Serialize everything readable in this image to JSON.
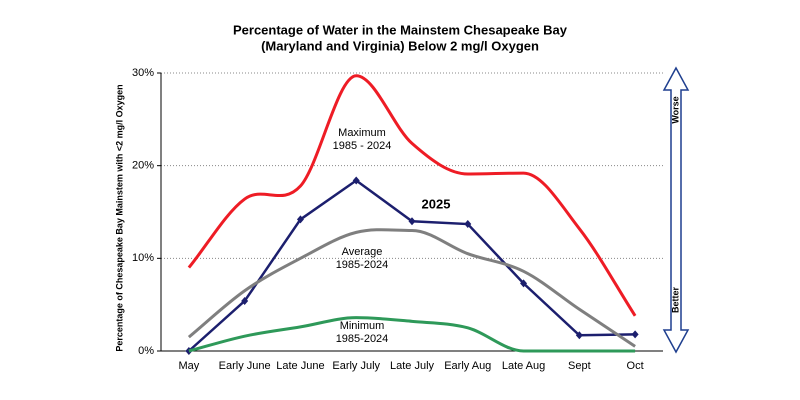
{
  "chart_data": {
    "type": "line",
    "title": [
      "Percentage of Water in the Mainstem Chesapeake Bay",
      "(Maryland and Virginia) Below 2 mg/l Oxygen"
    ],
    "y_label": "Percentage of Chesapeake Bay Mainstem with <2 mg/l Oxygen",
    "categories": [
      "May",
      "Early June",
      "Late June",
      "Early July",
      "Late July",
      "Early Aug",
      "Late Aug",
      "Sept",
      "Oct"
    ],
    "ylim": [
      0,
      30
    ],
    "yticks": [
      {
        "value": 0,
        "label": "0%"
      },
      {
        "value": 10,
        "label": "10%"
      },
      {
        "value": 20,
        "label": "20%"
      },
      {
        "value": 30,
        "label": "30%"
      }
    ],
    "grid": true,
    "series": [
      {
        "name": "Maximum",
        "period": "1985 - 2024",
        "color": "#ee1c25",
        "smooth": true,
        "values": [
          9.0,
          16.4,
          17.8,
          29.7,
          22.4,
          19.1,
          19.2,
          13.2,
          3.8
        ]
      },
      {
        "name": "2025",
        "color": "#1c1f6e",
        "smooth": false,
        "markers": true,
        "values": [
          0,
          5.4,
          14.2,
          18.4,
          14.0,
          13.7,
          7.3,
          1.7,
          1.8
        ]
      },
      {
        "name": "Average",
        "period": "1985-2024",
        "color": "#7f7f7f",
        "smooth": true,
        "values": [
          1.5,
          6.5,
          10.0,
          12.8,
          13.0,
          10.5,
          8.6,
          4.5,
          0.5
        ]
      },
      {
        "name": "Minimum",
        "period": "1985-2024",
        "color": "#2e9959",
        "smooth": true,
        "values": [
          0,
          1.6,
          2.6,
          3.6,
          3.2,
          2.5,
          0,
          0,
          0
        ]
      }
    ],
    "arrow_labels": {
      "top": "Worse",
      "bottom": "Better"
    }
  }
}
